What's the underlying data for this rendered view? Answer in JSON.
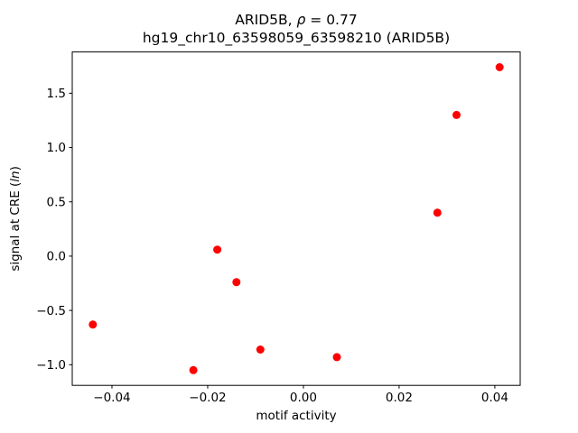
{
  "chart_data": {
    "type": "scatter",
    "title": "ARID5B, ρ = 0.77",
    "title_parts": {
      "prefix": "ARID5B, ",
      "rho": "ρ",
      "suffix": " = 0.77"
    },
    "subtitle": "hg19_chr10_63598059_63598210 (ARID5B)",
    "xlabel": "motif activity",
    "ylabel": "signal at CRE (ln)",
    "ylabel_parts": {
      "prefix": "signal at CRE (",
      "italic": "ln",
      "suffix": ")"
    },
    "correlation_rho": 0.77,
    "xlim": [
      -0.0483,
      0.0453
    ],
    "ylim": [
      -1.19,
      1.88
    ],
    "grid": false,
    "legend": "none",
    "marker_color": "#ff0000",
    "marker_radius_px": 4.5,
    "xticks": {
      "values": [
        -0.04,
        -0.02,
        0.0,
        0.02,
        0.04
      ],
      "labels": [
        "−0.04",
        "−0.02",
        "0.00",
        "0.02",
        "0.04"
      ]
    },
    "yticks": {
      "values": [
        -1.0,
        -0.5,
        0.0,
        0.5,
        1.0,
        1.5
      ],
      "labels": [
        "−1.0",
        "−0.5",
        "0.0",
        "0.5",
        "1.0",
        "1.5"
      ]
    },
    "points": [
      [
        -0.044,
        -0.63
      ],
      [
        -0.023,
        -1.05
      ],
      [
        -0.018,
        0.06
      ],
      [
        -0.014,
        -0.24
      ],
      [
        -0.009,
        -0.86
      ],
      [
        0.007,
        -0.93
      ],
      [
        0.028,
        0.4
      ],
      [
        0.032,
        1.3
      ],
      [
        0.041,
        1.74
      ]
    ]
  }
}
